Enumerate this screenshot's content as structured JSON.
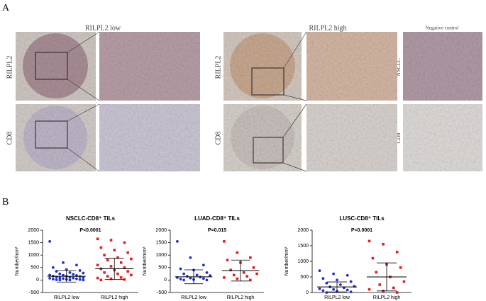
{
  "figure": {
    "panel_a": "A",
    "panel_b": "B",
    "titles": [
      "RILPL2 low",
      "RILPL2 high",
      "Negative control"
    ],
    "row_labels": [
      "RILPL2",
      "CD8",
      "RILPL2",
      "CD8",
      "NSCLC",
      "CD8"
    ]
  },
  "chart_data": [
    {
      "type": "dotplot",
      "title": "NSCLC-CD8⁺ TILs",
      "annotation": "P<0.0001",
      "y_label": "Number/mm²",
      "categories": [
        "RILPL2 low",
        "RILPL2 high"
      ],
      "groups": [
        {
          "color": "#1f2fd0",
          "marker": "circle",
          "mean": 150,
          "sd": 230,
          "values": [
            1550,
            700,
            600,
            500,
            420,
            380,
            350,
            300,
            280,
            250,
            230,
            200,
            190,
            180,
            160,
            150,
            140,
            120,
            110,
            100,
            90,
            80,
            70,
            60,
            50,
            40,
            30,
            20,
            10,
            0,
            0,
            0
          ]
        },
        {
          "color": "#e0201f",
          "marker": "square",
          "mean": 450,
          "sd": 430,
          "values": [
            1650,
            1600,
            1500,
            1300,
            1200,
            1100,
            1000,
            900,
            850,
            800,
            700,
            600,
            550,
            500,
            450,
            400,
            350,
            300,
            250,
            200,
            150,
            100,
            80,
            50,
            20,
            0
          ]
        }
      ],
      "ylim": [
        -500,
        2000
      ],
      "yticks": [
        -500,
        0,
        500,
        1000,
        1500,
        2000
      ]
    },
    {
      "type": "dotplot",
      "title": "LUAD-CD8⁺ TILs",
      "annotation": "P=0.015",
      "y_label": "Number/mm²",
      "categories": [
        "RILPL2 low",
        "RILPL2 high"
      ],
      "groups": [
        {
          "color": "#1f2fd0",
          "marker": "circle",
          "mean": 130,
          "sd": 280,
          "values": [
            1550,
            900,
            600,
            450,
            400,
            300,
            250,
            200,
            180,
            150,
            120,
            100,
            80,
            60,
            40,
            20,
            0,
            0
          ]
        },
        {
          "color": "#e0201f",
          "marker": "square",
          "mean": 380,
          "sd": 420,
          "values": [
            1550,
            1100,
            900,
            800,
            700,
            500,
            400,
            300,
            250,
            200,
            150,
            100,
            50,
            0
          ]
        }
      ],
      "ylim": [
        -500,
        2000
      ],
      "yticks": [
        -500,
        0,
        500,
        1000,
        1500,
        2000
      ]
    },
    {
      "type": "dotplot",
      "title": "LUSC-CD8⁺ TILs",
      "annotation": "P<0.0001",
      "y_label": "Number/mm²",
      "categories": [
        "RILPL2 low",
        "RILPL2 high"
      ],
      "groups": [
        {
          "color": "#1f2fd0",
          "marker": "circle",
          "mean": 180,
          "sd": 160,
          "values": [
            700,
            600,
            550,
            450,
            400,
            350,
            300,
            250,
            200,
            180,
            150,
            120,
            100,
            80,
            60,
            40,
            20,
            0
          ]
        },
        {
          "color": "#e0201f",
          "marker": "square",
          "mean": 500,
          "sd": 450,
          "values": [
            1650,
            1550,
            1300,
            1100,
            900,
            800,
            650,
            500,
            350,
            250,
            150,
            100,
            50,
            0
          ]
        }
      ],
      "ylim": [
        0,
        2000
      ],
      "yticks": [
        0,
        500,
        1000,
        1500,
        2000
      ]
    }
  ]
}
